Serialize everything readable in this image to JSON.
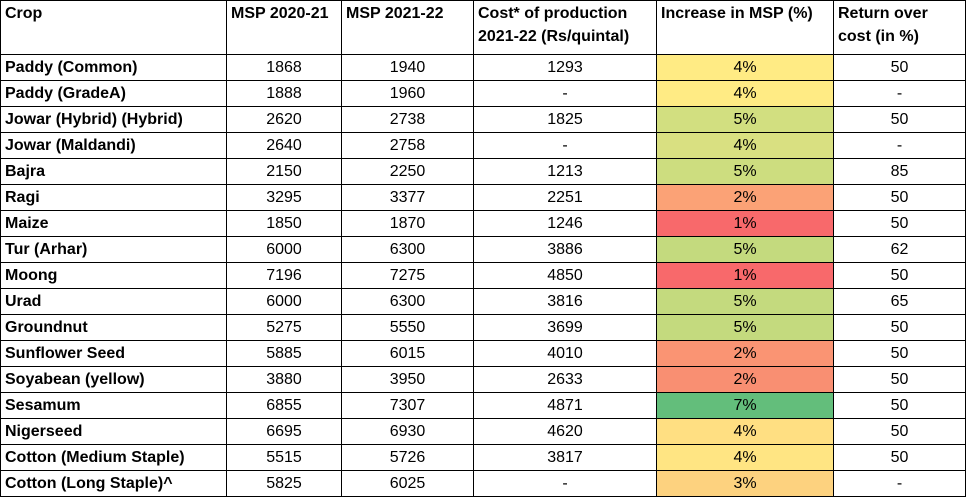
{
  "headers": {
    "crop": "Crop",
    "msp_2020_21": "MSP 2020-21",
    "msp_2021_22": "MSP 2021-22",
    "cost": "Cost* of production 2021-22 (Rs/quintal)",
    "increase": "Increase in MSP (%)",
    "return": "Return over cost (in %)"
  },
  "rows": [
    {
      "crop": "Paddy (Common)",
      "msp2021": "1868",
      "msp2122": "1940",
      "cost": "1293",
      "increase": "4%",
      "inc_color": "#FFEB84",
      "return": "50"
    },
    {
      "crop": "Paddy (GradeA)",
      "msp2021": "1888",
      "msp2122": "1960",
      "cost": "-",
      "increase": "4%",
      "inc_color": "#FFEB84",
      "return": "-"
    },
    {
      "crop": "Jowar (Hybrid) (Hybrid)",
      "msp2021": "2620",
      "msp2122": "2738",
      "cost": "1825",
      "increase": "5%",
      "inc_color": "#D2DF80",
      "return": "50"
    },
    {
      "crop": "Jowar (Maldandi)",
      "msp2021": "2640",
      "msp2122": "2758",
      "cost": "-",
      "increase": "4%",
      "inc_color": "#D9E081",
      "return": "-"
    },
    {
      "crop": "Bajra",
      "msp2021": "2150",
      "msp2122": "2250",
      "cost": "1213",
      "increase": "5%",
      "inc_color": "#CDDD7F",
      "return": "85"
    },
    {
      "crop": "Ragi",
      "msp2021": "3295",
      "msp2122": "3377",
      "cost": "2251",
      "increase": "2%",
      "inc_color": "#FBA276",
      "return": "50"
    },
    {
      "crop": "Maize",
      "msp2021": "1850",
      "msp2122": "1870",
      "cost": "1246",
      "increase": "1%",
      "inc_color": "#F8696B",
      "return": "50"
    },
    {
      "crop": "Tur (Arhar)",
      "msp2021": "6000",
      "msp2122": "6300",
      "cost": "3886",
      "increase": "5%",
      "inc_color": "#C4DA7E",
      "return": "62"
    },
    {
      "crop": "Moong",
      "msp2021": "7196",
      "msp2122": "7275",
      "cost": "4850",
      "increase": "1%",
      "inc_color": "#F8696B",
      "return": "50"
    },
    {
      "crop": "Urad",
      "msp2021": "6000",
      "msp2122": "6300",
      "cost": "3816",
      "increase": "5%",
      "inc_color": "#C4DA7E",
      "return": "65"
    },
    {
      "crop": "Groundnut",
      "msp2021": "5275",
      "msp2122": "5550",
      "cost": "3699",
      "increase": "5%",
      "inc_color": "#C4DA7E",
      "return": "50"
    },
    {
      "crop": "Sunflower Seed",
      "msp2021": "5885",
      "msp2122": "6015",
      "cost": "4010",
      "increase": "2%",
      "inc_color": "#FA9473",
      "return": "50"
    },
    {
      "crop": "Soyabean (yellow)",
      "msp2021": "3880",
      "msp2122": "3950",
      "cost": "2633",
      "increase": "2%",
      "inc_color": "#F98F72",
      "return": "50"
    },
    {
      "crop": "Sesamum",
      "msp2021": "6855",
      "msp2122": "7307",
      "cost": "4871",
      "increase": "7%",
      "inc_color": "#63BE7B",
      "return": "50"
    },
    {
      "crop": "Nigerseed",
      "msp2021": "6695",
      "msp2122": "6930",
      "cost": "4620",
      "increase": "4%",
      "inc_color": "#FFDF82",
      "return": "50"
    },
    {
      "crop": "Cotton (Medium Staple)",
      "msp2021": "5515",
      "msp2122": "5726",
      "cost": "3817",
      "increase": "4%",
      "inc_color": "#FFE583",
      "return": "50"
    },
    {
      "crop": "Cotton (Long Staple)^",
      "msp2021": "5825",
      "msp2122": "6025",
      "cost": "-",
      "increase": "3%",
      "inc_color": "#FDD27F",
      "return": "-"
    }
  ]
}
